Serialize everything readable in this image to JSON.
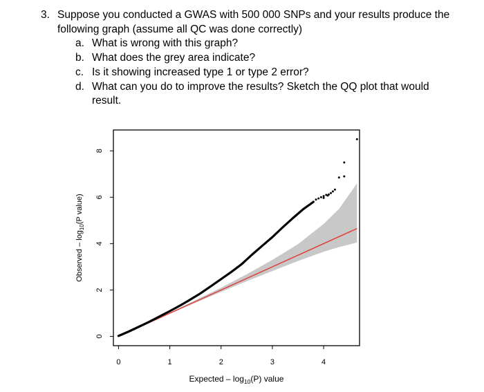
{
  "question": {
    "number": "3.",
    "stem_line1": "Suppose you conducted a GWAS with 500 000 SNPs and your results produce the",
    "stem_line2": "following graph (assume all QC was done correctly)",
    "parts": [
      {
        "letter": "a.",
        "text": "What is wrong with this graph?"
      },
      {
        "letter": "b.",
        "text": "What does the grey area indicate?"
      },
      {
        "letter": "c.",
        "text": "Is it showing increased type 1 or type 2 error?"
      },
      {
        "letter": "d.",
        "text": "What can you do to improve the results? Sketch the QQ plot that would"
      },
      {
        "letter": "",
        "text": "result."
      }
    ]
  },
  "chart_data": {
    "type": "scatter",
    "title": "",
    "xlabel_pre": "Expected – log",
    "xlabel_sub": "10",
    "xlabel_post": "(P) value",
    "ylabel_pre": "Observed – log",
    "ylabel_sub": "10",
    "ylabel_post": "(P value)",
    "xlim": [
      -0.1,
      4.7
    ],
    "ylim": [
      -0.4,
      8.9
    ],
    "x_ticks": [
      0,
      1,
      2,
      3,
      4
    ],
    "y_ticks": [
      0,
      2,
      4,
      6,
      8
    ],
    "x_tick_labels": [
      "0",
      "1",
      "2",
      "3",
      "4"
    ],
    "y_tick_labels": [
      "0",
      "2",
      "4",
      "6",
      "8"
    ],
    "grid": false,
    "colors": {
      "points": "#000000",
      "reference_line": "#e0403a",
      "confidence_band": "#c8c8c8"
    },
    "reference_line": {
      "x": [
        0,
        4.65
      ],
      "y": [
        0,
        4.65
      ]
    },
    "confidence_band": {
      "x": [
        1.0,
        1.5,
        2.0,
        2.5,
        3.0,
        3.5,
        4.0,
        4.3,
        4.65
      ],
      "upper": [
        1.02,
        1.56,
        2.1,
        2.68,
        3.3,
        3.98,
        4.85,
        5.5,
        6.6
      ],
      "lower": [
        0.98,
        1.45,
        1.92,
        2.38,
        2.82,
        3.25,
        3.65,
        3.85,
        4.05
      ]
    },
    "observed_curve": {
      "x": [
        0,
        0.2,
        0.4,
        0.6,
        0.8,
        1.0,
        1.2,
        1.4,
        1.6,
        1.8,
        2.0,
        2.2,
        2.4,
        2.6,
        2.8,
        3.0,
        3.2,
        3.4,
        3.6,
        3.8
      ],
      "y": [
        0.02,
        0.21,
        0.42,
        0.63,
        0.86,
        1.09,
        1.33,
        1.59,
        1.86,
        2.16,
        2.47,
        2.78,
        3.11,
        3.52,
        3.9,
        4.28,
        4.7,
        5.1,
        5.48,
        5.8
      ]
    },
    "tail_points": [
      {
        "x": 3.85,
        "y": 5.9
      },
      {
        "x": 3.9,
        "y": 5.95
      },
      {
        "x": 3.95,
        "y": 6.0
      },
      {
        "x": 4.0,
        "y": 6.05
      },
      {
        "x": 4.05,
        "y": 6.1
      },
      {
        "x": 4.1,
        "y": 6.12
      },
      {
        "x": 4.14,
        "y": 6.18
      },
      {
        "x": 4.18,
        "y": 6.25
      },
      {
        "x": 4.22,
        "y": 6.33
      },
      {
        "x": 4.0,
        "y": 5.97
      },
      {
        "x": 4.08,
        "y": 6.07
      },
      {
        "x": 4.3,
        "y": 6.85
      },
      {
        "x": 4.4,
        "y": 6.9
      },
      {
        "x": 4.4,
        "y": 7.5
      },
      {
        "x": 4.65,
        "y": 8.5
      }
    ]
  }
}
